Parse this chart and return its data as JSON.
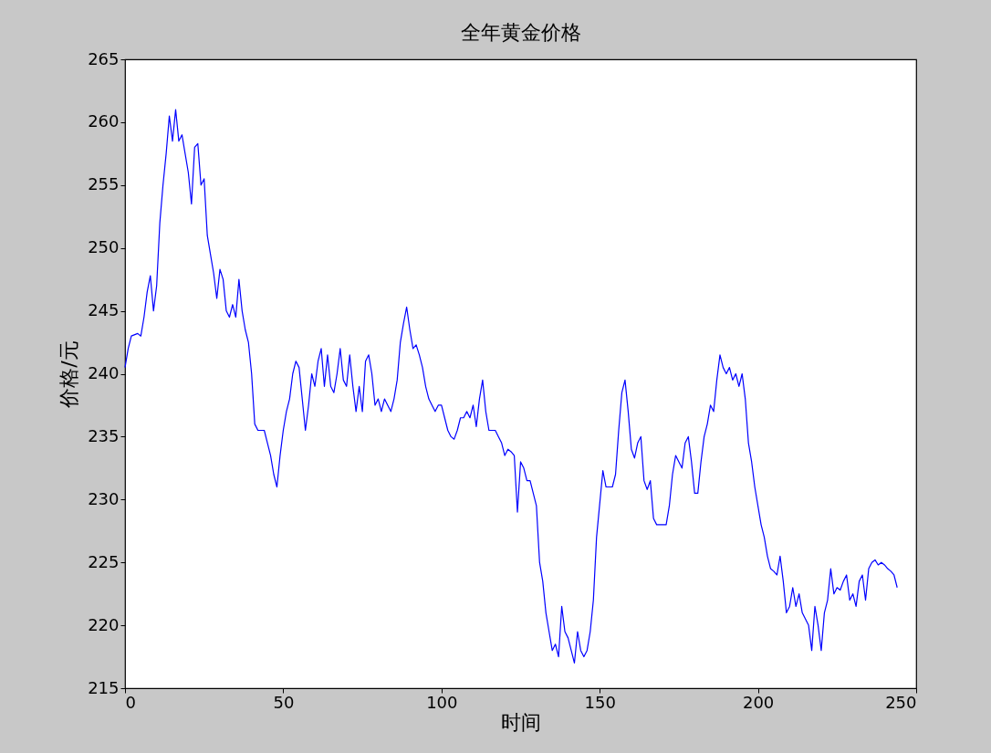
{
  "chart_data": {
    "type": "line",
    "title": "全年黄金价格",
    "xlabel": "时间",
    "ylabel": "价格/元",
    "xlim": [
      0,
      250
    ],
    "xticks": [
      0,
      50,
      100,
      150,
      200,
      250
    ],
    "ylim": [
      215,
      265
    ],
    "yticks": [
      215,
      220,
      225,
      230,
      235,
      240,
      245,
      250,
      255,
      260,
      265
    ],
    "grid": false,
    "series": [
      {
        "color": "#0000ff",
        "x": [
          0,
          1,
          2,
          4,
          5,
          6,
          7,
          8,
          9,
          10,
          11,
          12,
          13,
          14,
          15,
          16,
          17,
          18,
          19,
          20,
          21,
          22,
          23,
          24,
          25,
          26,
          27,
          28,
          29,
          30,
          31,
          32,
          33,
          34,
          35,
          36,
          37,
          38,
          39,
          40,
          41,
          42,
          44,
          45,
          46,
          47,
          48,
          49,
          50,
          51,
          52,
          53,
          54,
          55,
          56,
          57,
          58,
          59,
          60,
          61,
          62,
          63,
          64,
          65,
          66,
          67,
          68,
          69,
          70,
          71,
          72,
          73,
          74,
          75,
          76,
          77,
          78,
          79,
          80,
          81,
          82,
          83,
          84,
          85,
          86,
          87,
          88,
          89,
          90,
          91,
          92,
          93,
          94,
          95,
          96,
          97,
          98,
          99,
          100,
          101,
          102,
          103,
          104,
          105,
          106,
          107,
          108,
          109,
          110,
          111,
          112,
          113,
          114,
          115,
          116,
          117,
          118,
          119,
          120,
          121,
          122,
          123,
          124,
          125,
          126,
          127,
          128,
          129,
          130,
          131,
          132,
          133,
          134,
          135,
          136,
          137,
          138,
          139,
          140,
          141,
          142,
          143,
          144,
          145,
          146,
          147,
          148,
          149,
          151,
          152,
          153,
          154,
          155,
          156,
          157,
          158,
          159,
          160,
          161,
          162,
          163,
          164,
          165,
          166,
          167,
          168,
          169,
          170,
          171,
          172,
          173,
          174,
          175,
          176,
          177,
          178,
          179,
          180,
          181,
          182,
          183,
          184,
          185,
          186,
          187,
          188,
          189,
          190,
          191,
          192,
          193,
          194,
          195,
          196,
          197,
          198,
          199,
          201,
          202,
          203,
          204,
          205,
          206,
          207,
          208,
          209,
          210,
          211,
          212,
          213,
          214,
          216,
          217,
          218,
          219,
          220,
          221,
          222,
          223,
          224,
          225,
          226,
          227,
          228,
          229,
          230,
          231,
          232,
          233,
          234,
          235,
          236,
          237,
          238,
          239,
          240,
          241,
          242,
          243,
          244
        ],
        "values": [
          240.5,
          242,
          243,
          243.2,
          243,
          244.5,
          246.5,
          247.8,
          245,
          247,
          252,
          255,
          257.5,
          260.5,
          258.5,
          261,
          258.5,
          259,
          257.5,
          256,
          253.5,
          258,
          258.3,
          255,
          255.5,
          251,
          249.5,
          248,
          246,
          248.3,
          247.5,
          245,
          244.5,
          245.5,
          244.5,
          247.5,
          245,
          243.5,
          242.5,
          240,
          236,
          235.5,
          235.5,
          234.5,
          233.5,
          232,
          231,
          233.5,
          235.5,
          237,
          238,
          240,
          241,
          240.5,
          238,
          235.5,
          237.5,
          240,
          239,
          241,
          242,
          239,
          241.5,
          239,
          238.5,
          240,
          242,
          239.5,
          239,
          241.5,
          239,
          237,
          239,
          237,
          241,
          241.5,
          240,
          237.5,
          238,
          237,
          238,
          237.5,
          237,
          238,
          239.5,
          242.5,
          244,
          245.3,
          243.5,
          242,
          242.3,
          241.5,
          240.5,
          239,
          238,
          237.5,
          237,
          237.5,
          237.5,
          236.5,
          235.5,
          235,
          234.8,
          235.5,
          236.5,
          236.5,
          237,
          236.5,
          237.5,
          235.8,
          238,
          239.5,
          237,
          235.5,
          235.5,
          235.5,
          235,
          234.5,
          233.5,
          234,
          233.8,
          233.5,
          229,
          233,
          232.5,
          231.5,
          231.5,
          230.5,
          229.5,
          225,
          223.5,
          221,
          219.5,
          218,
          218.5,
          217.5,
          221.5,
          219.5,
          219,
          218,
          217,
          219.5,
          218,
          217.5,
          218,
          219.5,
          222,
          227,
          232.3,
          231,
          231,
          231,
          232,
          235.5,
          238.5,
          239.5,
          237,
          234,
          233.3,
          234.5,
          235,
          231.5,
          230.8,
          231.5,
          228.5,
          228,
          228,
          228,
          228,
          229.5,
          232,
          233.5,
          233,
          232.5,
          234.5,
          235,
          233,
          230.5,
          230.5,
          233,
          235,
          236,
          237.5,
          237,
          239.5,
          241.5,
          240.5,
          240,
          240.5,
          239.5,
          240,
          239,
          240,
          238,
          234.5,
          233,
          231,
          228,
          227,
          225.5,
          224.5,
          224.3,
          224,
          225.5,
          223.5,
          221,
          221.5,
          223,
          221.5,
          222.5,
          221,
          220,
          218,
          221.5,
          220,
          218,
          221,
          222,
          224.5,
          222.5,
          223,
          222.8,
          223.5,
          224,
          222,
          222.5,
          221.5,
          223.5,
          224,
          222,
          224.5,
          225,
          225.2,
          224.8,
          225,
          224.8,
          224.5,
          224.3,
          224,
          223
        ]
      }
    ]
  }
}
